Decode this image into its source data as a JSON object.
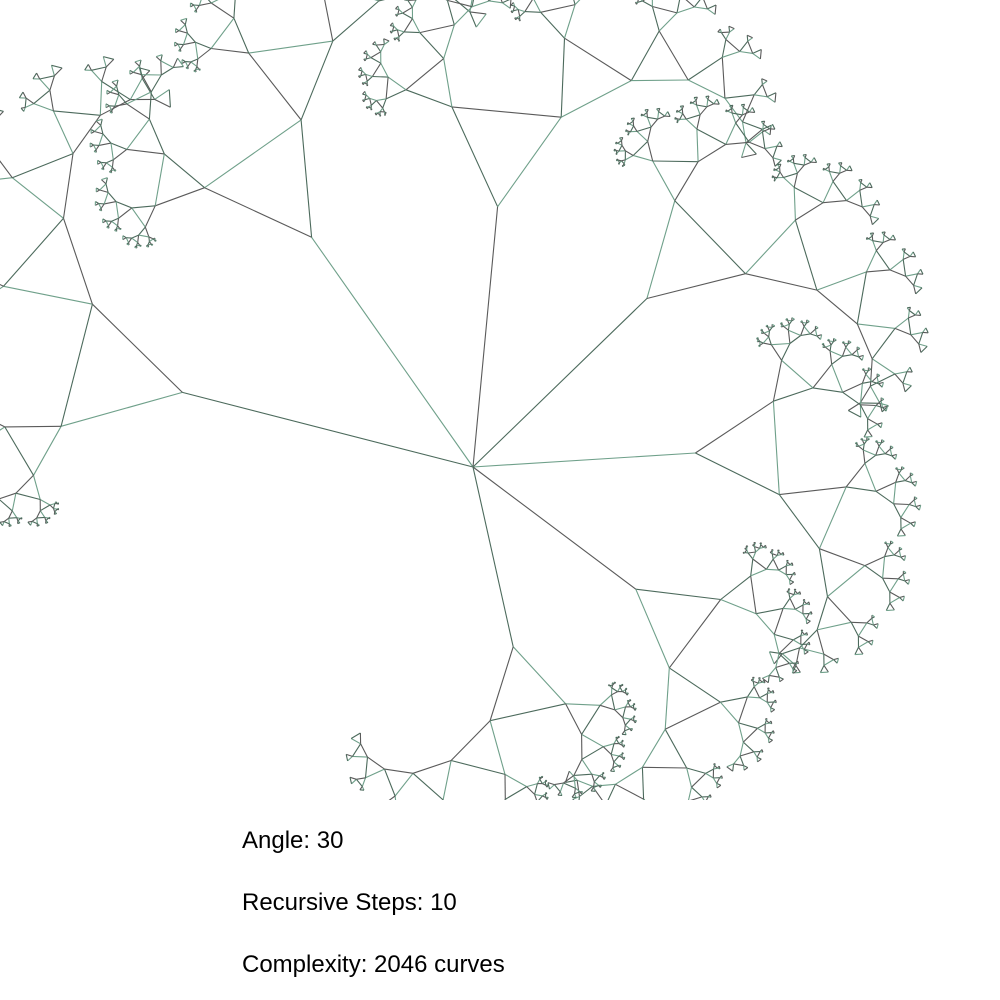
{
  "fractal": {
    "angle_degrees": 30,
    "recursive_steps": 10,
    "curve_count": 2046,
    "stroke_colors": [
      "#4c6a5c",
      "#6fa08a",
      "#5a5a5a"
    ]
  },
  "info": {
    "angle_text": "Angle: 30",
    "steps_text": "Recursive Steps: 10",
    "complexity_text": "Complexity: 2046 curves"
  }
}
